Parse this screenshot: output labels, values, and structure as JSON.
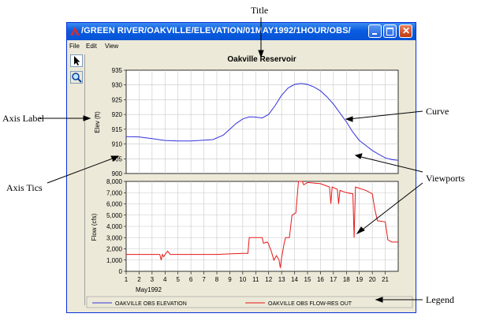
{
  "window": {
    "title": "/GREEN RIVER/OAKVILLE/ELEVATION/01MAY1992/1HOUR/OBS/",
    "menu": [
      "File",
      "Edit",
      "View"
    ]
  },
  "plot_title": "Oakville Reservoir",
  "annotations": {
    "title": "Title",
    "axis_label": "Axis Label",
    "axis_tics": "Axis Tics",
    "curve": "Curve",
    "viewports": "Viewports",
    "legend": "Legend"
  },
  "legend": {
    "elevation": "OAKVILLE OBS ELEVATION",
    "flow": "OAKVILLE OBS FLOW-RES OUT"
  },
  "colors": {
    "elevation": "#3333dd",
    "flow": "#e81818"
  },
  "chart_data": [
    {
      "type": "line",
      "ylabel": "Elev (ft)",
      "ylim": [
        900,
        935
      ],
      "yticks": [
        "935",
        "930",
        "925",
        "920",
        "915",
        "910",
        "905",
        "900"
      ],
      "xlim": [
        1,
        22
      ],
      "grid": true,
      "series": [
        {
          "name": "OAKVILLE OBS ELEVATION",
          "points": [
            [
              1,
              912.5
            ],
            [
              2,
              912.4
            ],
            [
              3,
              911.8
            ],
            [
              4,
              911.2
            ],
            [
              5,
              911.0
            ],
            [
              6,
              911.0
            ],
            [
              7,
              911.3
            ],
            [
              7.7,
              911.5
            ],
            [
              8.5,
              913
            ],
            [
              9,
              915
            ],
            [
              9.5,
              917
            ],
            [
              10,
              918.5
            ],
            [
              10.5,
              919.2
            ],
            [
              11,
              919.1
            ],
            [
              11.5,
              918.8
            ],
            [
              12,
              920
            ],
            [
              12.5,
              923
            ],
            [
              13,
              926.5
            ],
            [
              13.5,
              929
            ],
            [
              14,
              930.2
            ],
            [
              14.5,
              930.5
            ],
            [
              15,
              930.2
            ],
            [
              15.5,
              929.3
            ],
            [
              16,
              928
            ],
            [
              16.5,
              926
            ],
            [
              17,
              923.5
            ],
            [
              17.5,
              920.5
            ],
            [
              18,
              917.5
            ],
            [
              18.5,
              914
            ],
            [
              19,
              911.2
            ],
            [
              19.5,
              909.5
            ],
            [
              20,
              907.8
            ],
            [
              20.5,
              906.5
            ],
            [
              21,
              905.3
            ],
            [
              21.5,
              904.7
            ],
            [
              22,
              904.5
            ]
          ]
        }
      ]
    },
    {
      "type": "line",
      "ylabel": "Flow (cfs)",
      "ylim": [
        0,
        8000
      ],
      "yticks": [
        "8,000",
        "7,000",
        "6,000",
        "5,000",
        "4,000",
        "3,000",
        "2,000",
        "1,000",
        "0"
      ],
      "xlim": [
        1,
        22
      ],
      "xticks": [
        "1",
        "2",
        "3",
        "4",
        "5",
        "6",
        "7",
        "8",
        "9",
        "10",
        "11",
        "12",
        "13",
        "14",
        "15",
        "16",
        "17",
        "18",
        "19",
        "20",
        "21"
      ],
      "xlabel": "May1992",
      "grid": true,
      "series": [
        {
          "name": "OAKVILLE OBS FLOW-RES OUT",
          "points": [
            [
              1,
              1500
            ],
            [
              2.5,
              1500
            ],
            [
              3.6,
              1500
            ],
            [
              3.7,
              1000
            ],
            [
              3.8,
              1500
            ],
            [
              3.9,
              1300
            ],
            [
              4.0,
              1500
            ],
            [
              4.2,
              1800
            ],
            [
              4.4,
              1500
            ],
            [
              5,
              1500
            ],
            [
              6,
              1500
            ],
            [
              7,
              1500
            ],
            [
              8,
              1500
            ],
            [
              9,
              1550
            ],
            [
              10,
              1600
            ],
            [
              10.4,
              1600
            ],
            [
              10.5,
              3000
            ],
            [
              11.5,
              3000
            ],
            [
              11.6,
              2500
            ],
            [
              11.9,
              2600
            ],
            [
              12.0,
              2400
            ],
            [
              12.2,
              1800
            ],
            [
              12.4,
              1000
            ],
            [
              12.6,
              1400
            ],
            [
              12.8,
              1000
            ],
            [
              12.9,
              300
            ],
            [
              13.0,
              1200
            ],
            [
              13.2,
              2500
            ],
            [
              13.3,
              3000
            ],
            [
              13.6,
              3000
            ],
            [
              13.8,
              5000
            ],
            [
              14.1,
              5200
            ],
            [
              14.3,
              8000
            ],
            [
              14.6,
              8000
            ],
            [
              14.7,
              7700
            ],
            [
              15,
              7900
            ],
            [
              16,
              7800
            ],
            [
              16.7,
              7500
            ],
            [
              16.8,
              6000
            ],
            [
              16.9,
              7500
            ],
            [
              17.3,
              7300
            ],
            [
              17.4,
              6000
            ],
            [
              17.5,
              7200
            ],
            [
              18,
              7000
            ],
            [
              18.5,
              6900
            ],
            [
              18.6,
              3000
            ],
            [
              18.7,
              7500
            ],
            [
              19.5,
              7200
            ],
            [
              20,
              6900
            ],
            [
              20.2,
              5500
            ],
            [
              20.4,
              4500
            ],
            [
              21,
              4400
            ],
            [
              21.2,
              2800
            ],
            [
              21.5,
              2600
            ],
            [
              22,
              2600
            ]
          ]
        }
      ]
    }
  ]
}
